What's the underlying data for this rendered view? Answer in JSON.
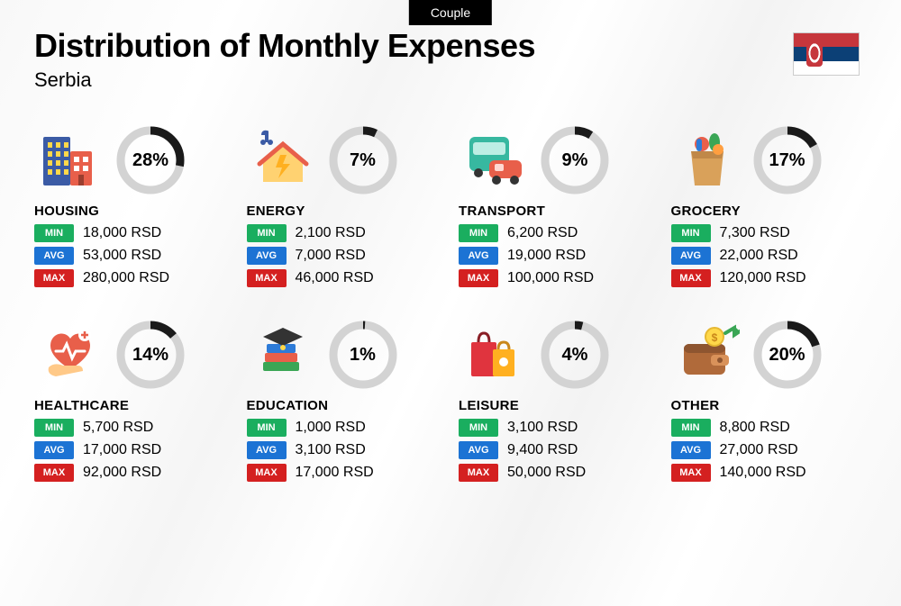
{
  "tag": "Couple",
  "title": "Distribution of Monthly Expenses",
  "country": "Serbia",
  "currency": "RSD",
  "flag_colors": {
    "top": "#c6363c",
    "middle": "#0c4076",
    "bottom": "#ffffff"
  },
  "donut": {
    "track_color": "#d3d3d3",
    "fill_color": "#1a1a1a",
    "stroke_width": 9,
    "radius": 33
  },
  "stat_labels": {
    "min": "MIN",
    "avg": "AVG",
    "max": "MAX"
  },
  "stat_colors": {
    "min": "#1aae5f",
    "avg": "#1c73d4",
    "max": "#d42020"
  },
  "categories": [
    {
      "key": "housing",
      "name": "HOUSING",
      "percent": 28,
      "min": "18,000",
      "avg": "53,000",
      "max": "280,000",
      "icon": "buildings"
    },
    {
      "key": "energy",
      "name": "ENERGY",
      "percent": 7,
      "min": "2,100",
      "avg": "7,000",
      "max": "46,000",
      "icon": "energy-house"
    },
    {
      "key": "transport",
      "name": "TRANSPORT",
      "percent": 9,
      "min": "6,200",
      "avg": "19,000",
      "max": "100,000",
      "icon": "bus-car"
    },
    {
      "key": "grocery",
      "name": "GROCERY",
      "percent": 17,
      "min": "7,300",
      "avg": "22,000",
      "max": "120,000",
      "icon": "grocery-bag"
    },
    {
      "key": "healthcare",
      "name": "HEALTHCARE",
      "percent": 14,
      "min": "5,700",
      "avg": "17,000",
      "max": "92,000",
      "icon": "heart-hand"
    },
    {
      "key": "education",
      "name": "EDUCATION",
      "percent": 1,
      "min": "1,000",
      "avg": "3,100",
      "max": "17,000",
      "icon": "books-cap"
    },
    {
      "key": "leisure",
      "name": "LEISURE",
      "percent": 4,
      "min": "3,100",
      "avg": "9,400",
      "max": "50,000",
      "icon": "shopping-bags"
    },
    {
      "key": "other",
      "name": "OTHER",
      "percent": 20,
      "min": "8,800",
      "avg": "27,000",
      "max": "140,000",
      "icon": "wallet-coin"
    }
  ],
  "background_color": "#f7f7f7",
  "title_fontsize": 36,
  "subtitle_fontsize": 22,
  "percent_fontsize": 20
}
